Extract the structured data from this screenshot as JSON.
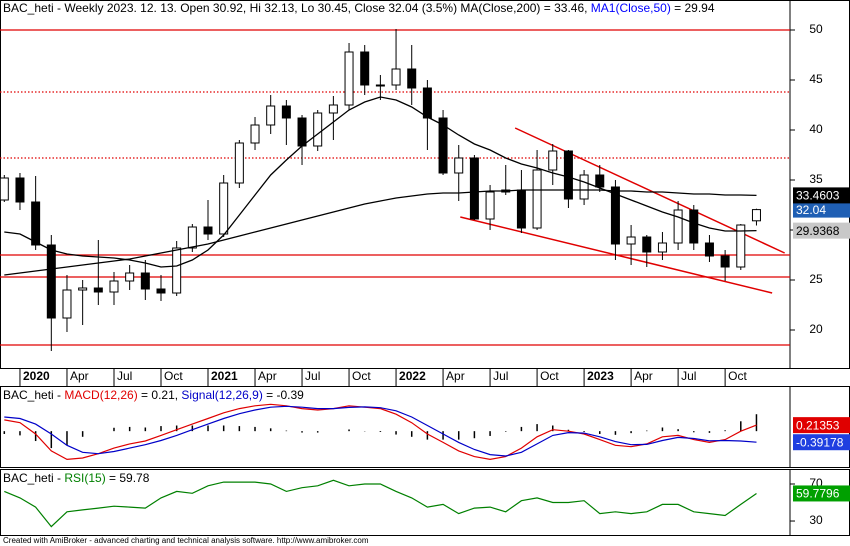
{
  "chart_data": [
    {
      "type": "candlestick",
      "title_parts": [
        {
          "text": "BAC_heti - Weekly 2023. 12. 13. Open 30.92, Hi 32.13, Lo 30.45, Close 32.04 (3.5%) MA(Close,200) = 33.46, ",
          "color": "#000000"
        },
        {
          "text": "MA1(Close,50)",
          "color": "#0000ff"
        },
        {
          "text": " = 29.94",
          "color": "#000000"
        }
      ],
      "categories": [
        "",
        "2020",
        null,
        null,
        "Apr",
        null,
        null,
        "Jul",
        null,
        null,
        "Oct",
        null,
        null,
        "2021",
        null,
        null,
        "Apr",
        null,
        null,
        "Jul",
        null,
        null,
        "Oct",
        null,
        null,
        "2022",
        null,
        null,
        "Apr",
        null,
        null,
        "Jul",
        null,
        null,
        "Oct",
        null,
        null,
        "2023",
        null,
        null,
        "Apr",
        null,
        null,
        "Jul",
        null,
        null,
        "Oct",
        null,
        null
      ],
      "open": [
        33.0,
        35.2,
        32.8,
        28.5,
        21.2,
        24.0,
        24.2,
        23.8,
        24.9,
        25.7,
        24.1,
        23.7,
        28.2,
        30.3,
        29.6,
        34.7,
        38.7,
        40.5,
        42.4,
        41.2,
        38.4,
        41.7,
        42.5,
        47.8,
        44.5,
        44.5,
        46.1,
        44.2,
        41.2,
        35.7,
        37.2,
        31.1,
        33.8,
        34.0,
        30.2,
        36.0,
        37.9,
        33.1,
        35.5,
        34.3,
        28.6,
        29.3,
        27.8,
        28.7,
        32.0,
        28.7,
        27.4,
        26.3,
        30.92
      ],
      "high": [
        35.5,
        35.7,
        35.4,
        29.5,
        25.5,
        25.0,
        29.0,
        25.8,
        26.5,
        27.0,
        25.5,
        28.9,
        30.6,
        33.0,
        35.5,
        39.0,
        41.3,
        43.5,
        43.0,
        41.5,
        42.0,
        43.4,
        48.7,
        48.5,
        45.5,
        50.1,
        48.5,
        45.0,
        42.0,
        38.5,
        37.5,
        34.5,
        36.5,
        36.0,
        38.0,
        38.6,
        38.0,
        36.0,
        36.5,
        35.0,
        30.5,
        29.5,
        29.8,
        32.9,
        32.5,
        29.5,
        28.0,
        30.6,
        32.13
      ],
      "low": [
        32.8,
        32.0,
        28.0,
        17.9,
        19.8,
        20.5,
        22.5,
        22.5,
        24.0,
        23.0,
        22.9,
        23.4,
        27.8,
        29.0,
        29.3,
        34.2,
        38.0,
        39.6,
        38.5,
        36.5,
        37.9,
        39.0,
        42.0,
        43.5,
        43.0,
        44.0,
        42.5,
        38.0,
        35.5,
        32.9,
        31.0,
        30.0,
        33.5,
        29.7,
        30.0,
        34.5,
        32.2,
        32.5,
        33.8,
        27.0,
        26.5,
        26.3,
        27.0,
        28.0,
        28.0,
        26.8,
        24.9,
        26.0,
        30.45
      ],
      "close": [
        35.2,
        32.8,
        28.5,
        21.2,
        24.0,
        24.2,
        23.8,
        24.9,
        25.7,
        24.1,
        23.7,
        28.2,
        30.3,
        29.6,
        34.7,
        38.7,
        40.5,
        42.4,
        41.2,
        38.4,
        41.7,
        42.5,
        47.8,
        44.5,
        44.5,
        46.1,
        44.2,
        41.2,
        35.7,
        37.2,
        31.1,
        33.8,
        34.0,
        30.2,
        36.0,
        37.9,
        33.1,
        35.5,
        34.3,
        28.6,
        29.3,
        27.8,
        28.7,
        32.0,
        28.7,
        27.4,
        26.3,
        30.5,
        32.04
      ],
      "up_color": "#ffffff",
      "down_color": "#000000",
      "close_box_color": "#1f5fb4",
      "series": [
        {
          "color": "#000000",
          "box_color": "#000000",
          "text_color": "#ffffff",
          "values": [
            25.5,
            25.7,
            25.9,
            26.1,
            26.3,
            26.5,
            26.7,
            26.9,
            27.1,
            27.4,
            27.7,
            28.0,
            28.3,
            28.6,
            29.0,
            29.4,
            29.8,
            30.2,
            30.6,
            31.0,
            31.4,
            31.8,
            32.2,
            32.6,
            32.9,
            33.2,
            33.4,
            33.6,
            33.7,
            33.7,
            33.8,
            33.9,
            33.9,
            34.0,
            34.0,
            34.0,
            34.0,
            34.0,
            34.0,
            33.9,
            33.9,
            33.8,
            33.8,
            33.7,
            33.6,
            33.6,
            33.5,
            33.5,
            33.4603
          ]
        },
        {
          "color": "#000000",
          "box_color": "#c8c8c8",
          "text_color": "#000000",
          "values": [
            29.8,
            29.6,
            28.8,
            28.0,
            27.6,
            27.4,
            27.3,
            27.2,
            27.0,
            26.7,
            26.3,
            26.4,
            27.0,
            28.0,
            29.5,
            31.5,
            33.5,
            35.5,
            37.0,
            38.4,
            39.6,
            40.8,
            42.0,
            42.8,
            43.3,
            43.0,
            42.3,
            41.3,
            40.5,
            39.5,
            38.6,
            38.0,
            37.2,
            36.6,
            36.2,
            35.7,
            35.3,
            34.8,
            34.2,
            33.6,
            33.0,
            32.4,
            31.8,
            31.3,
            30.7,
            30.2,
            29.9,
            29.9,
            29.9368
          ]
        }
      ],
      "hlines": [
        {
          "value": 50,
          "style": "solid"
        },
        {
          "value": 43.8,
          "style": "dotted"
        },
        {
          "value": 37.2,
          "style": "dotted"
        },
        {
          "value": 27.5,
          "style": "solid"
        },
        {
          "value": 25.3,
          "style": "solid"
        },
        {
          "value": 18.5,
          "style": "solid"
        }
      ],
      "trendlines": [
        {
          "x": [
            32.6,
            49.8
          ],
          "y": [
            40.2,
            27.7
          ]
        },
        {
          "x": [
            29.1,
            49.0
          ],
          "y": [
            31.3,
            23.7
          ]
        }
      ],
      "annotation_color": "#e00000",
      "ylim": [
        16.2,
        53
      ],
      "yticks": [
        50,
        45,
        40,
        35,
        30,
        25,
        20
      ]
    },
    {
      "type": "line",
      "title_parts": [
        {
          "text": "BAC_heti - ",
          "color": "#000000"
        },
        {
          "text": "MACD(12,26)",
          "color": "#e00000"
        },
        {
          "text": " = 0.21, ",
          "color": "#000000"
        },
        {
          "text": "Signal(12,26,9)",
          "color": "#0000c8"
        },
        {
          "text": " = -0.39",
          "color": "#000000"
        }
      ],
      "series": [
        {
          "color": "#e00000",
          "box_color": "#e00000",
          "text_color": "#ffffff",
          "values": [
            0.4,
            0.3,
            -0.1,
            -0.7,
            -1.0,
            -0.95,
            -0.8,
            -0.6,
            -0.45,
            -0.35,
            -0.15,
            0.05,
            0.25,
            0.45,
            0.65,
            0.8,
            0.9,
            0.95,
            0.9,
            0.8,
            0.75,
            0.8,
            0.9,
            0.85,
            0.8,
            0.6,
            0.3,
            -0.1,
            -0.4,
            -0.7,
            -0.9,
            -1.0,
            -0.9,
            -0.6,
            -0.2,
            0.05,
            0.0,
            -0.1,
            -0.3,
            -0.5,
            -0.55,
            -0.45,
            -0.2,
            -0.15,
            -0.3,
            -0.4,
            -0.3,
            0.0,
            0.21353
          ]
        },
        {
          "color": "#0000c8",
          "box_color": "#1f3fe0",
          "text_color": "#ffffff",
          "values": [
            0.5,
            0.45,
            0.25,
            -0.1,
            -0.5,
            -0.75,
            -0.8,
            -0.72,
            -0.6,
            -0.48,
            -0.33,
            -0.15,
            0.05,
            0.25,
            0.45,
            0.62,
            0.75,
            0.85,
            0.88,
            0.85,
            0.8,
            0.8,
            0.84,
            0.86,
            0.83,
            0.72,
            0.5,
            0.2,
            -0.1,
            -0.4,
            -0.65,
            -0.83,
            -0.88,
            -0.75,
            -0.45,
            -0.15,
            -0.05,
            -0.07,
            -0.2,
            -0.37,
            -0.48,
            -0.47,
            -0.33,
            -0.22,
            -0.26,
            -0.34,
            -0.33,
            -0.35,
            -0.39178
          ]
        }
      ],
      "histogram": {
        "color": "#000000",
        "values": [
          -0.1,
          -0.15,
          -0.35,
          -0.6,
          -0.5,
          -0.2,
          0,
          0.12,
          0.15,
          0.13,
          0.18,
          0.2,
          0.2,
          0.2,
          0.2,
          0.18,
          0.15,
          0.1,
          0.02,
          -0.05,
          -0.05,
          0,
          0.06,
          -0.01,
          -0.03,
          -0.12,
          -0.2,
          -0.3,
          -0.3,
          -0.3,
          -0.25,
          -0.17,
          -0.02,
          0.15,
          0.25,
          0.2,
          0.05,
          -0.03,
          -0.1,
          -0.13,
          -0.07,
          0.02,
          0.13,
          0.07,
          -0.04,
          -0.06,
          0.03,
          0.35,
          0.6
        ]
      },
      "ylim": [
        -1.27,
        1.6
      ]
    },
    {
      "type": "line",
      "title_parts": [
        {
          "text": "BAC_heti - ",
          "color": "#000000"
        },
        {
          "text": "RSI(15)",
          "color": "#008000"
        },
        {
          "text": " = 59.78",
          "color": "#000000"
        }
      ],
      "series": [
        {
          "color": "#008000",
          "box_color": "#00a000",
          "text_color": "#ffffff",
          "values": [
            62,
            55,
            45,
            24,
            40,
            42,
            44,
            46,
            45,
            44,
            55,
            62,
            60,
            68,
            72,
            72,
            72,
            70,
            62,
            66,
            68,
            74,
            68,
            70,
            70,
            62,
            55,
            45,
            48,
            38,
            44,
            45,
            40,
            52,
            55,
            50,
            50,
            52,
            38,
            40,
            38,
            40,
            48,
            48,
            40,
            38,
            36,
            48,
            59.7796
          ]
        }
      ],
      "ylim": [
        14.9,
        86.2
      ],
      "yticks": [
        70,
        30
      ]
    }
  ],
  "footer": "Created with AmiBroker - advanced charting and technical analysis software. http://www.amibroker.com"
}
